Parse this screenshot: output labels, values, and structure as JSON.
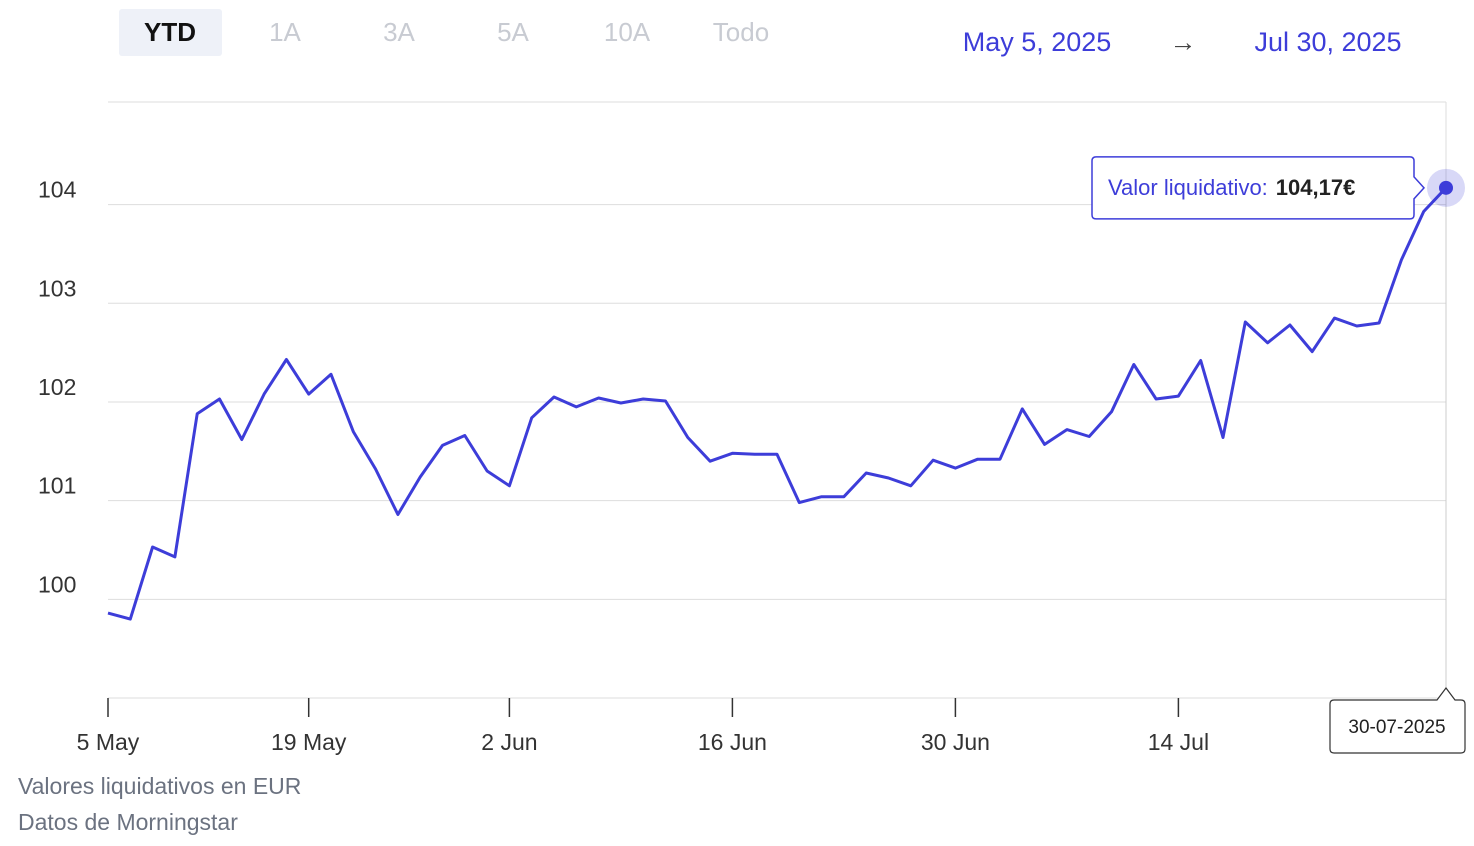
{
  "range_buttons": [
    {
      "label": "YTD",
      "active": true
    },
    {
      "label": "1A",
      "active": false
    },
    {
      "label": "3A",
      "active": false
    },
    {
      "label": "5A",
      "active": false
    },
    {
      "label": "10A",
      "active": false
    },
    {
      "label": "Todo",
      "active": false
    }
  ],
  "date_range": {
    "start": "May 5, 2025",
    "arrow": "→",
    "end": "Jul 30, 2025"
  },
  "chart_data": {
    "type": "line",
    "color": "#3d3dd9",
    "categories": [
      "5 May",
      null,
      null,
      null,
      null,
      null,
      null,
      null,
      null,
      "19 May",
      null,
      null,
      null,
      null,
      null,
      null,
      null,
      null,
      "2 Jun",
      null,
      null,
      null,
      null,
      null,
      null,
      null,
      null,
      null,
      "16 Jun",
      null,
      null,
      null,
      null,
      null,
      null,
      null,
      null,
      null,
      "30 Jun",
      null,
      null,
      null,
      null,
      null,
      null,
      null,
      null,
      null,
      "14 Jul",
      null,
      null,
      null,
      null,
      null,
      null,
      null,
      null,
      null,
      null,
      null,
      null
    ],
    "values": [
      99.86,
      99.8,
      100.53,
      100.43,
      101.88,
      102.03,
      101.62,
      102.08,
      102.43,
      102.08,
      102.28,
      101.7,
      101.32,
      100.86,
      101.24,
      101.56,
      101.66,
      101.3,
      101.15,
      101.84,
      102.05,
      101.95,
      102.04,
      101.99,
      102.03,
      102.01,
      101.64,
      101.4,
      101.48,
      101.47,
      101.47,
      100.98,
      101.04,
      101.04,
      101.28,
      101.23,
      101.15,
      101.41,
      101.33,
      101.42,
      101.42,
      101.93,
      101.57,
      101.72,
      101.65,
      101.9,
      102.38,
      102.03,
      102.06,
      102.42,
      101.64,
      102.81,
      102.6,
      102.78,
      102.51,
      102.85,
      102.77,
      102.8,
      103.44,
      103.93,
      104.17
    ],
    "ylim": [
      99,
      105.04
    ],
    "yticks": [
      100,
      101,
      102,
      103,
      104
    ],
    "grid": true,
    "tooltip": {
      "label": "Valor liquidativo:",
      "text": "104,17€",
      "date": "30-07-2025"
    }
  },
  "footer": [
    "Valores liquidativos en EUR",
    "Datos de Morningstar"
  ]
}
